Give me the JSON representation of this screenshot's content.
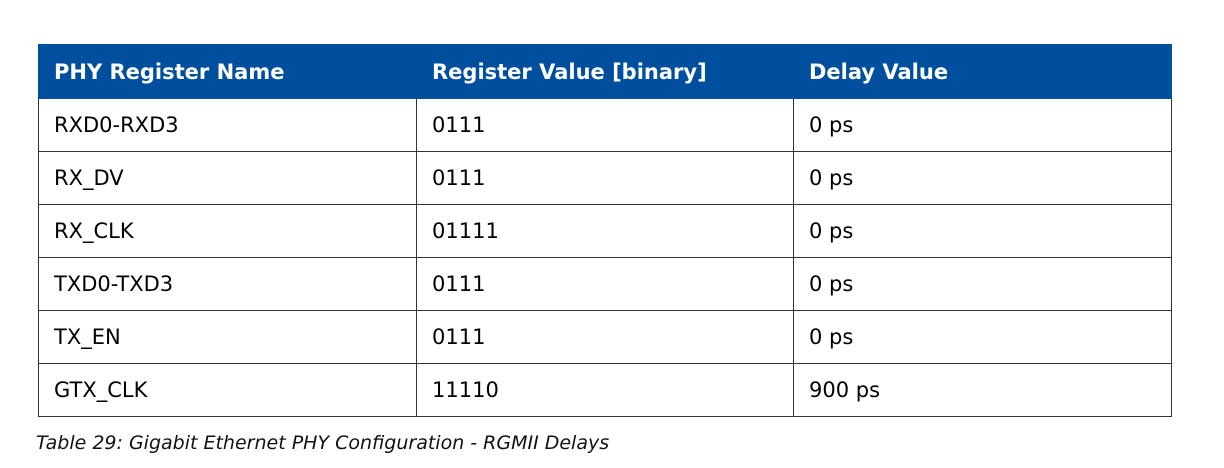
{
  "table": {
    "headers": [
      "PHY Register Name",
      "Register Value [binary]",
      "Delay Value"
    ],
    "rows": [
      [
        "RXD0-RXD3",
        "0111",
        "0 ps"
      ],
      [
        "RX_DV",
        "0111",
        "0 ps"
      ],
      [
        "RX_CLK",
        "01111",
        "0 ps"
      ],
      [
        "TXD0-TXD3",
        "0111",
        "0 ps"
      ],
      [
        "TX_EN",
        "0111",
        "0 ps"
      ],
      [
        "GTX_CLK",
        "11110",
        "900 ps"
      ]
    ]
  },
  "caption": "Table 29: Gigabit Ethernet PHY Configuration - RGMII Delays",
  "colors": {
    "header_background": "#004f9e",
    "header_text": "#ffffff",
    "border": "#333333"
  }
}
